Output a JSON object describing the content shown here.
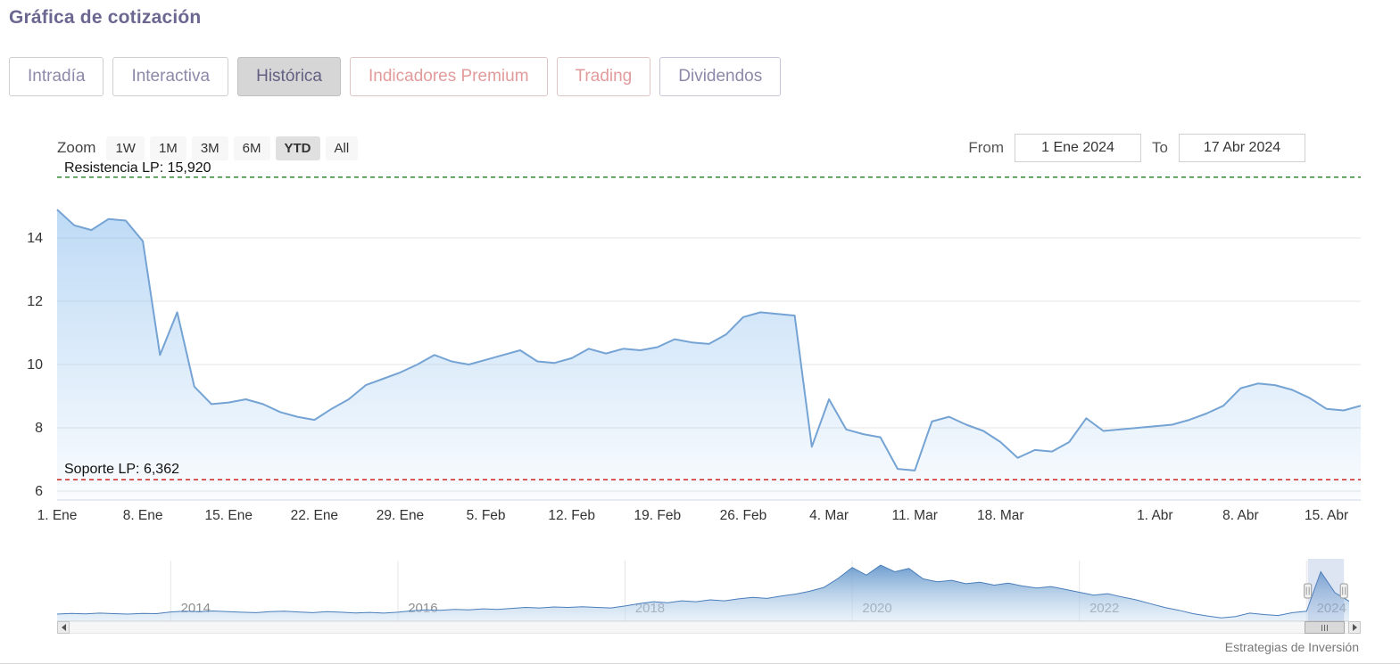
{
  "page": {
    "title": "Gráfica de cotización",
    "credit": "Estrategias de Inversión"
  },
  "tabs": [
    {
      "label": "Intradía"
    },
    {
      "label": "Interactiva"
    },
    {
      "label": "Histórica",
      "active": true
    },
    {
      "label": "Indicadores Premium",
      "premium": true
    },
    {
      "label": "Trading",
      "premium": true
    },
    {
      "label": "Dividendos"
    }
  ],
  "range_selector": {
    "zoom_label": "Zoom",
    "buttons": [
      "1W",
      "1M",
      "3M",
      "6M",
      "YTD",
      "All"
    ],
    "active_button": "YTD",
    "from_label": "From",
    "from_value": "1 Ene 2024",
    "to_label": "To",
    "to_value": "17 Abr 2024"
  },
  "chart_data": {
    "type": "area",
    "ylim": [
      5.6,
      16.2
    ],
    "y_ticks": [
      6,
      8,
      10,
      12,
      14
    ],
    "x_tick_labels": [
      "1. Ene",
      "8. Ene",
      "15. Ene",
      "22. Ene",
      "29. Ene",
      "5. Feb",
      "12. Feb",
      "19. Feb",
      "26. Feb",
      "4. Mar",
      "11. Mar",
      "18. Mar",
      "1. Abr",
      "8. Abr",
      "15. Abr"
    ],
    "x_tick_indices": [
      0,
      5,
      10,
      15,
      20,
      25,
      30,
      35,
      40,
      45,
      50,
      55,
      64,
      69,
      74
    ],
    "values": [
      14.9,
      14.4,
      14.25,
      14.6,
      14.55,
      13.9,
      10.3,
      11.65,
      9.3,
      8.75,
      8.8,
      8.9,
      8.75,
      8.5,
      8.35,
      8.25,
      8.6,
      8.9,
      9.35,
      9.55,
      9.75,
      10.0,
      10.3,
      10.1,
      10.0,
      10.15,
      10.3,
      10.45,
      10.1,
      10.05,
      10.2,
      10.5,
      10.35,
      10.5,
      10.45,
      10.55,
      10.8,
      10.7,
      10.65,
      10.95,
      11.5,
      11.65,
      11.6,
      11.55,
      7.4,
      8.9,
      7.95,
      7.8,
      7.7,
      6.7,
      6.65,
      8.2,
      8.35,
      8.1,
      7.9,
      7.55,
      7.05,
      7.3,
      7.25,
      7.55,
      8.3,
      7.9,
      7.95,
      8.0,
      8.05,
      8.1,
      8.25,
      8.45,
      8.7,
      9.25,
      9.4,
      9.35,
      9.2,
      8.95,
      8.6,
      8.55,
      8.7
    ],
    "annotations": {
      "resistance": {
        "label": "Resistencia LP: 15,920",
        "value": 15.92
      },
      "support": {
        "label": "Soporte LP: 6,362",
        "value": 6.362
      }
    },
    "navigator": {
      "year_labels": [
        "2014",
        "2016",
        "2018",
        "2020",
        "2022",
        "2024"
      ],
      "year_indices": [
        8,
        24,
        40,
        56,
        72,
        88
      ],
      "ylim": [
        4.5,
        16.5
      ],
      "values": [
        6.0,
        6.15,
        6.05,
        6.2,
        6.1,
        6.0,
        6.15,
        6.1,
        6.45,
        6.6,
        6.5,
        6.65,
        6.5,
        6.4,
        6.3,
        6.5,
        6.6,
        6.45,
        6.3,
        6.5,
        6.4,
        6.25,
        6.35,
        6.2,
        6.4,
        6.7,
        6.9,
        6.8,
        7.0,
        6.9,
        7.1,
        7.0,
        7.2,
        7.4,
        7.3,
        7.5,
        7.4,
        7.55,
        7.4,
        7.3,
        7.7,
        8.2,
        8.6,
        8.4,
        8.8,
        8.6,
        9.0,
        8.8,
        9.2,
        9.5,
        9.3,
        9.8,
        10.2,
        10.8,
        11.6,
        13.5,
        15.8,
        14.2,
        16.3,
        14.9,
        15.6,
        13.4,
        12.8,
        13.1,
        12.4,
        12.7,
        12.1,
        12.5,
        11.9,
        11.5,
        11.8,
        11.2,
        10.6,
        10.0,
        10.3,
        9.6,
        9.0,
        8.2,
        7.4,
        6.8,
        6.1,
        5.6,
        5.2,
        5.5,
        6.2,
        5.9,
        5.7,
        6.3,
        6.6,
        14.9,
        10.5,
        8.7
      ],
      "selection": {
        "start_frac": 0.968,
        "end_frac": 0.996
      }
    }
  },
  "colors": {
    "accent_purple": "#6b6790",
    "tab_pink": "#e29b9b",
    "series_line": "#74a3d4",
    "series_fill": "#7cb5ec",
    "nav_line": "#4a7ebb",
    "grid": "#e6e6e6",
    "axis_text": "#333333",
    "resistance": "#1e7e1e",
    "support": "#cc1111",
    "selection_mask": "rgba(102,133,194,0.22)"
  }
}
